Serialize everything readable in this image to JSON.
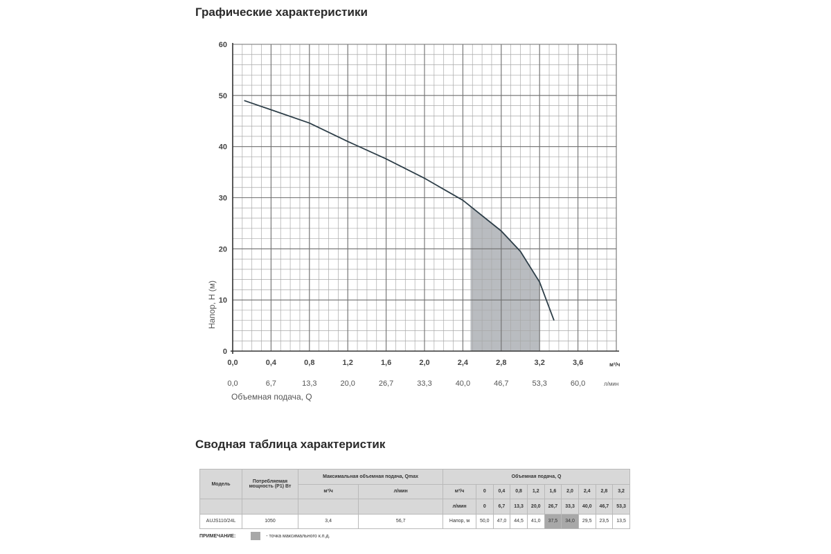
{
  "titles": {
    "chart_heading": "Графические характеристики",
    "table_heading": "Сводная таблица характеристик"
  },
  "chart_data": {
    "type": "line",
    "ylabel": "Напор, H (м)",
    "xlabel": "Объемная подача, Q",
    "x_unit_primary": "м³/ч",
    "x_unit_secondary": "л/мин",
    "x_ticks_primary": [
      "0,0",
      "0,4",
      "0,8",
      "1,2",
      "1,6",
      "2,0",
      "2,4",
      "2,8",
      "3,2",
      "3,6"
    ],
    "x_ticks_secondary": [
      "0,0",
      "6,7",
      "13,3",
      "20,0",
      "26,7",
      "33,3",
      "40,0",
      "46,7",
      "53,3",
      "60,0"
    ],
    "y_ticks": [
      "0",
      "10",
      "20",
      "30",
      "40",
      "50",
      "60"
    ],
    "xlim": [
      0,
      4.0
    ],
    "ylim": [
      0,
      60
    ],
    "grid": true,
    "series": [
      {
        "x": [
          0.12,
          0.4,
          0.8,
          1.2,
          1.6,
          2.0,
          2.4,
          2.8,
          3.0,
          3.2,
          3.35
        ],
        "y": [
          49.0,
          47.2,
          44.6,
          41.0,
          37.6,
          33.8,
          29.5,
          23.5,
          19.5,
          13.5,
          6.0
        ]
      }
    ],
    "highlight_region": {
      "x_from": 2.48,
      "x_to": 3.2,
      "color": "#b9bcc0"
    },
    "line_color": "#2d3e48",
    "grid_color": "#a8a8a8"
  },
  "table": {
    "col_model": "Модель",
    "col_power": "Потребляемая мощность (P1) Вт",
    "col_qmax": "Максимальная объемная подача, Qmax",
    "col_flow": "Объемная подача, Q",
    "unit_m3h": "м³/ч",
    "unit_lmin": "л/мин",
    "flow_m3h": [
      "0",
      "0,4",
      "0,8",
      "1,2",
      "1,6",
      "2,0",
      "2,4",
      "2,8",
      "3,2"
    ],
    "flow_lmin": [
      "0",
      "6,7",
      "13,3",
      "20,0",
      "26,7",
      "33,3",
      "40,0",
      "46,7",
      "53,3"
    ],
    "row": {
      "model": "AUJS110/24L",
      "power": "1050",
      "qmax_m3h": "3,4",
      "qmax_lmin": "56,7",
      "head_label": "Напор, м",
      "head": [
        "50,0",
        "47,0",
        "44,5",
        "41,0",
        "37,5",
        "34,0",
        "29,5",
        "23,5",
        "13,5"
      ]
    }
  },
  "note": {
    "label": "ПРИМЕЧАНИЕ:",
    "text": "- точка максимального к.п.д."
  }
}
